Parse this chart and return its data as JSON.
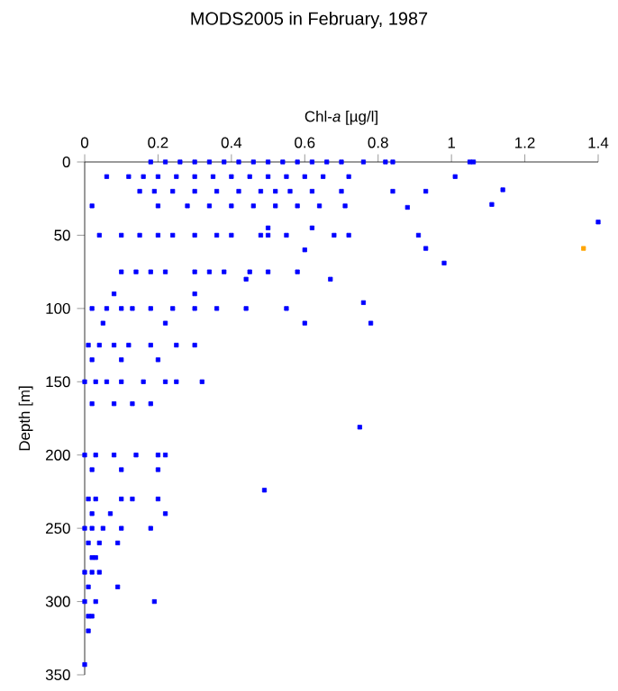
{
  "chart_data": {
    "type": "scatter",
    "title": "MODS2005 in February, 1987",
    "xlabel": "Chl-*a* [µg/l]",
    "ylabel": "Depth [m]",
    "xlim": [
      0,
      1.4
    ],
    "xticks": [
      0,
      0.2,
      0.4,
      0.6,
      0.8,
      1,
      1.2,
      1.4
    ],
    "ylim": [
      350,
      0
    ],
    "yticks": [
      0,
      50,
      100,
      150,
      200,
      250,
      300,
      350
    ],
    "grid": false,
    "marker": "square",
    "series": [
      {
        "color": "#0000ff",
        "x": [
          0.18,
          0.22,
          0.26,
          0.3,
          0.34,
          0.38,
          0.42,
          0.46,
          0.5,
          0.54,
          0.58,
          0.62,
          0.66,
          0.7,
          0.76,
          0.82,
          0.84,
          1.05,
          1.06,
          0.06,
          0.12,
          0.16,
          0.2,
          0.25,
          0.3,
          0.35,
          0.4,
          0.45,
          0.5,
          0.55,
          0.6,
          0.65,
          0.72,
          1.01,
          0.15,
          0.19,
          0.24,
          0.3,
          0.36,
          0.42,
          0.48,
          0.52,
          0.56,
          0.62,
          0.7,
          0.84,
          0.93,
          1.14,
          0.02,
          0.2,
          0.28,
          0.34,
          0.4,
          0.46,
          0.52,
          0.58,
          0.64,
          0.71,
          0.88,
          1.11,
          1.4,
          0.5,
          0.62,
          0.04,
          0.1,
          0.15,
          0.2,
          0.24,
          0.3,
          0.36,
          0.4,
          0.48,
          0.5,
          0.55,
          0.68,
          0.72,
          0.91,
          0.6,
          0.93,
          0.1,
          0.14,
          0.18,
          0.22,
          0.3,
          0.34,
          0.38,
          0.45,
          0.5,
          0.58,
          0.98,
          0.67,
          0.44,
          0.08,
          0.3,
          0.02,
          0.06,
          0.1,
          0.13,
          0.18,
          0.24,
          0.3,
          0.36,
          0.44,
          0.55,
          0.76,
          0.05,
          0.22,
          0.6,
          0.78,
          0.01,
          0.04,
          0.08,
          0.12,
          0.18,
          0.25,
          0.3,
          0.02,
          0.1,
          0.2,
          0.0,
          0.03,
          0.06,
          0.1,
          0.16,
          0.22,
          0.25,
          0.32,
          0.02,
          0.08,
          0.13,
          0.18,
          0.75,
          0.0,
          0.03,
          0.08,
          0.14,
          0.2,
          0.22,
          0.02,
          0.1,
          0.2,
          0.49,
          0.01,
          0.03,
          0.1,
          0.13,
          0.2,
          0.02,
          0.07,
          0.22,
          0.0,
          0.02,
          0.05,
          0.1,
          0.18,
          0.01,
          0.04,
          0.09,
          0.02,
          0.03,
          0.0,
          0.02,
          0.04,
          0.01,
          0.09,
          0.0,
          0.03,
          0.19,
          0.01,
          0.02,
          0.01,
          0.0
        ],
        "values": [
          0,
          0,
          0,
          0,
          0,
          0,
          0,
          0,
          0,
          0,
          0,
          0,
          0,
          0,
          0,
          0,
          0,
          0,
          0,
          10,
          10,
          10,
          10,
          10,
          10,
          10,
          10,
          10,
          10,
          10,
          10,
          10,
          10,
          10,
          20,
          20,
          20,
          20,
          20,
          20,
          20,
          20,
          20,
          20,
          20,
          20,
          20,
          19,
          30,
          30,
          30,
          30,
          30,
          30,
          30,
          30,
          30,
          30,
          31,
          29,
          41,
          45,
          45,
          50,
          50,
          50,
          50,
          50,
          50,
          50,
          50,
          50,
          50,
          50,
          50,
          50,
          50,
          60,
          59,
          75,
          75,
          75,
          75,
          75,
          75,
          75,
          75,
          75,
          75,
          69,
          80,
          80,
          90,
          90,
          100,
          100,
          100,
          100,
          100,
          100,
          100,
          100,
          100,
          100,
          96,
          110,
          110,
          110,
          110,
          125,
          125,
          125,
          125,
          125,
          125,
          125,
          135,
          135,
          135,
          150,
          150,
          150,
          150,
          150,
          150,
          150,
          150,
          165,
          165,
          165,
          165,
          181,
          200,
          200,
          200,
          200,
          200,
          200,
          210,
          210,
          210,
          224,
          230,
          230,
          230,
          230,
          230,
          240,
          240,
          240,
          250,
          250,
          250,
          250,
          250,
          260,
          260,
          260,
          270,
          270,
          280,
          280,
          280,
          290,
          290,
          300,
          300,
          300,
          310,
          310,
          320,
          343
        ]
      },
      {
        "color": "#ffa500",
        "x": [
          1.36
        ],
        "values": [
          59
        ]
      }
    ]
  }
}
